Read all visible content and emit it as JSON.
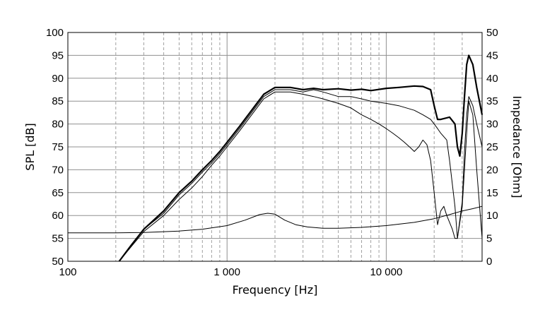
{
  "chart_data": {
    "type": "line",
    "title": "",
    "xlabel": "Frequency [Hz]",
    "ylabel": "SPL [dB]",
    "y2label": "Impedance [Ohm]",
    "x_scale": "log",
    "xlim": [
      100,
      40000
    ],
    "ylim": [
      50,
      100
    ],
    "y2lim": [
      0,
      50
    ],
    "grid": true,
    "x_tick_values": [
      100,
      1000,
      10000
    ],
    "x_tick_labels": [
      "100",
      "1 000",
      "10 000"
    ],
    "y_tick_values": [
      50,
      55,
      60,
      65,
      70,
      75,
      80,
      85,
      90,
      95,
      100
    ],
    "y_tick_labels": [
      "50",
      "55",
      "60",
      "65",
      "70",
      "75",
      "80",
      "85",
      "90",
      "95",
      "100"
    ],
    "y2_tick_values": [
      0,
      5,
      10,
      15,
      20,
      25,
      30,
      35,
      40,
      45,
      50
    ],
    "y2_tick_labels": [
      "0",
      "5",
      "10",
      "15",
      "20",
      "25",
      "30",
      "35",
      "40",
      "45",
      "50"
    ],
    "series": [
      {
        "axis": "left",
        "style": "thick",
        "x": [
          210,
          250,
          300,
          400,
          500,
          600,
          700,
          800,
          900,
          1000,
          1200,
          1500,
          1700,
          2000,
          2500,
          3000,
          3500,
          4000,
          5000,
          6000,
          7000,
          8000,
          10000,
          12000,
          15000,
          17000,
          19000,
          20000,
          21000,
          22000,
          25000,
          27000,
          28000,
          29000,
          30000,
          31000,
          32000,
          33000,
          35000,
          37000,
          40000
        ],
        "y": [
          50,
          53.5,
          57,
          61,
          65,
          67.5,
          70,
          72,
          74,
          76,
          79.5,
          84,
          86.5,
          88,
          88,
          87.5,
          87.8,
          87.5,
          87.7,
          87.4,
          87.6,
          87.3,
          87.8,
          88,
          88.3,
          88.2,
          87.5,
          84,
          81,
          81,
          81.5,
          80,
          75,
          73,
          78,
          86,
          93,
          95,
          93,
          88,
          82
        ]
      },
      {
        "axis": "left",
        "style": "thin",
        "x": [
          210,
          250,
          300,
          400,
          500,
          600,
          700,
          800,
          900,
          1000,
          1200,
          1500,
          1700,
          2000,
          2500,
          3000,
          3500,
          4000,
          5000,
          6000,
          7000,
          8000,
          10000,
          12000,
          15000,
          17000,
          19000,
          20000,
          21000,
          22000,
          24000,
          25000,
          27000,
          28000,
          30000,
          31000,
          32000,
          33000,
          35000,
          37000,
          40000
        ],
        "y": [
          50,
          53.5,
          57,
          60.5,
          64.5,
          67,
          69.5,
          71.5,
          73.5,
          75.5,
          79,
          83.5,
          86,
          87.5,
          87.5,
          87,
          87.5,
          87,
          86,
          86,
          85.5,
          85,
          84.5,
          84,
          83,
          82,
          81,
          80,
          79,
          78,
          76.5,
          72,
          62,
          55,
          63,
          74,
          82,
          86,
          84,
          80,
          75
        ]
      },
      {
        "axis": "left",
        "style": "thin",
        "x": [
          210,
          250,
          300,
          400,
          500,
          600,
          700,
          800,
          900,
          1000,
          1200,
          1500,
          1700,
          2000,
          2500,
          3000,
          3500,
          4000,
          5000,
          6000,
          7000,
          8000,
          9000,
          10000,
          11000,
          12000,
          13000,
          14000,
          15000,
          16000,
          17000,
          18000,
          19000,
          20000,
          21000,
          22000,
          23000,
          24000,
          25000,
          26000,
          27000,
          28000,
          30000,
          31000,
          32000,
          33000,
          35000,
          37000,
          40000
        ],
        "y": [
          50,
          53.2,
          56.5,
          60,
          63.5,
          66,
          68.5,
          71,
          73,
          75,
          78.5,
          83,
          85.5,
          87,
          87,
          86.5,
          86,
          85.5,
          84.5,
          83.5,
          82,
          81,
          80,
          79,
          78,
          77,
          76,
          75,
          74,
          75,
          76.5,
          75.5,
          72,
          65,
          58,
          61,
          62,
          60,
          58.5,
          57,
          55,
          55,
          62,
          70,
          78,
          85,
          82,
          70,
          55
        ]
      },
      {
        "axis": "right",
        "style": "thin",
        "x": [
          100,
          200,
          300,
          500,
          700,
          1000,
          1300,
          1600,
          1800,
          2000,
          2300,
          2700,
          3200,
          4000,
          5000,
          7000,
          10000,
          15000,
          20000,
          25000,
          30000,
          35000,
          40000
        ],
        "y": [
          6.2,
          6.2,
          6.3,
          6.6,
          7,
          7.8,
          9,
          10.2,
          10.5,
          10.3,
          9,
          8,
          7.5,
          7.2,
          7.2,
          7.4,
          7.8,
          8.5,
          9.3,
          10.2,
          11,
          11.5,
          12
        ]
      }
    ]
  }
}
